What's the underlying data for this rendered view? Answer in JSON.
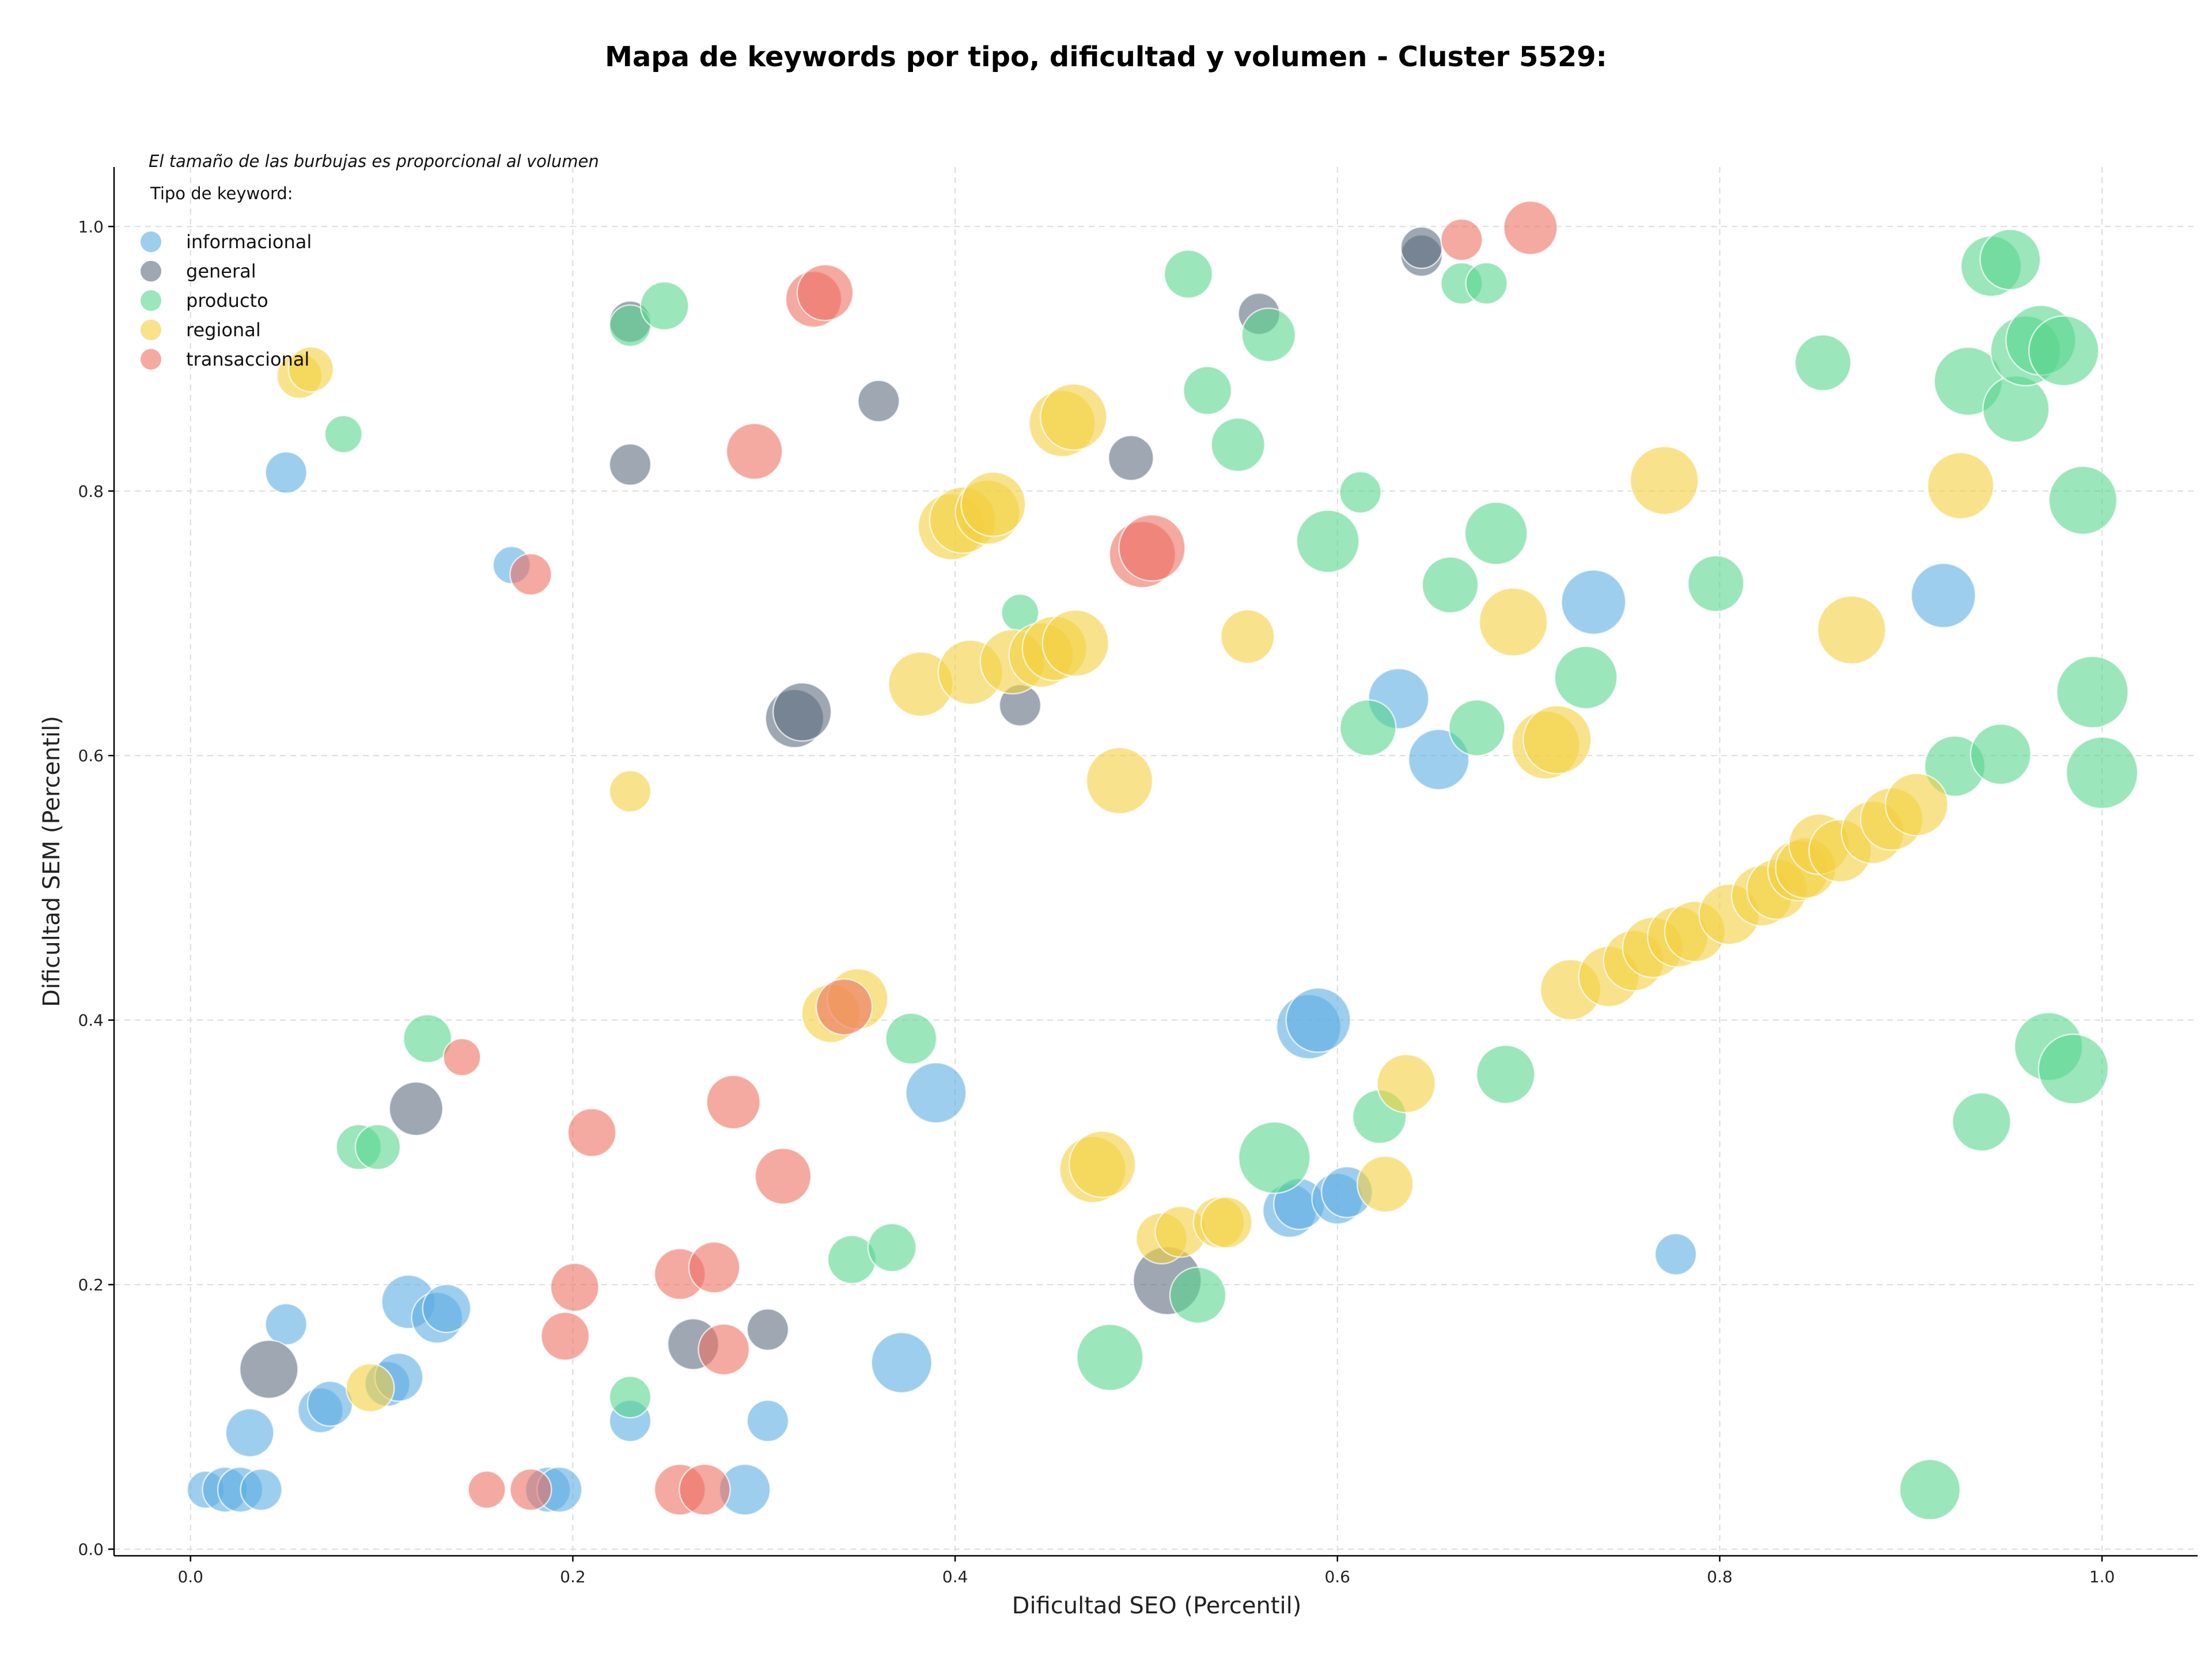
{
  "chart_data": {
    "type": "scatter",
    "title": "Mapa de keywords por tipo, dificultad y volumen - Cluster 5529:",
    "xlabel": "Dificultad SEO (Percentil)",
    "ylabel": "Dificultad SEM (Percentil)",
    "xlim": [
      -0.04,
      1.05
    ],
    "ylim": [
      -0.005,
      1.045
    ],
    "xticks": [
      "0.0",
      "0.2",
      "0.4",
      "0.6",
      "0.8",
      "1.0"
    ],
    "yticks": [
      "0.0",
      "0.2",
      "0.4",
      "0.6",
      "0.8",
      "1.0"
    ],
    "grid": true,
    "note": "El tamaño de las burbujas es proporcional al volumen",
    "legend": {
      "title": "Tipo de keyword:",
      "placement": "top-left"
    },
    "series": [
      {
        "name": "informacional",
        "color": "#5DADE2",
        "points": [
          {
            "x": 0.008,
            "y": 0.045,
            "s": 2
          },
          {
            "x": 0.018,
            "y": 0.045,
            "s": 4
          },
          {
            "x": 0.026,
            "y": 0.045,
            "s": 4
          },
          {
            "x": 0.037,
            "y": 0.045,
            "s": 3
          },
          {
            "x": 0.031,
            "y": 0.088,
            "s": 5
          },
          {
            "x": 0.05,
            "y": 0.17,
            "s": 3
          },
          {
            "x": 0.05,
            "y": 0.814,
            "s": 3
          },
          {
            "x": 0.068,
            "y": 0.105,
            "s": 4
          },
          {
            "x": 0.073,
            "y": 0.11,
            "s": 4
          },
          {
            "x": 0.103,
            "y": 0.125,
            "s": 4
          },
          {
            "x": 0.109,
            "y": 0.13,
            "s": 5
          },
          {
            "x": 0.114,
            "y": 0.187,
            "s": 7
          },
          {
            "x": 0.129,
            "y": 0.175,
            "s": 6
          },
          {
            "x": 0.134,
            "y": 0.182,
            "s": 5
          },
          {
            "x": 0.168,
            "y": 0.744,
            "s": 2
          },
          {
            "x": 0.187,
            "y": 0.045,
            "s": 4
          },
          {
            "x": 0.193,
            "y": 0.045,
            "s": 4
          },
          {
            "x": 0.23,
            "y": 0.097,
            "s": 3
          },
          {
            "x": 0.29,
            "y": 0.045,
            "s": 6
          },
          {
            "x": 0.302,
            "y": 0.097,
            "s": 3
          },
          {
            "x": 0.372,
            "y": 0.141,
            "s": 10
          },
          {
            "x": 0.39,
            "y": 0.345,
            "s": 10
          },
          {
            "x": 0.575,
            "y": 0.256,
            "s": 7
          },
          {
            "x": 0.58,
            "y": 0.261,
            "s": 6
          },
          {
            "x": 0.585,
            "y": 0.395,
            "s": 12
          },
          {
            "x": 0.59,
            "y": 0.4,
            "s": 12
          },
          {
            "x": 0.6,
            "y": 0.265,
            "s": 6
          },
          {
            "x": 0.605,
            "y": 0.27,
            "s": 6
          },
          {
            "x": 0.632,
            "y": 0.643,
            "s": 10
          },
          {
            "x": 0.653,
            "y": 0.597,
            "s": 10
          },
          {
            "x": 0.734,
            "y": 0.716,
            "s": 12
          },
          {
            "x": 0.777,
            "y": 0.223,
            "s": 3
          },
          {
            "x": 0.917,
            "y": 0.721,
            "s": 12
          }
        ]
      },
      {
        "name": "general",
        "color": "#5D6D7E",
        "points": [
          {
            "x": 0.041,
            "y": 0.136,
            "s": 9
          },
          {
            "x": 0.118,
            "y": 0.333,
            "s": 7
          },
          {
            "x": 0.23,
            "y": 0.82,
            "s": 3
          },
          {
            "x": 0.23,
            "y": 0.928,
            "s": 3
          },
          {
            "x": 0.263,
            "y": 0.155,
            "s": 6
          },
          {
            "x": 0.302,
            "y": 0.166,
            "s": 3
          },
          {
            "x": 0.316,
            "y": 0.628,
            "s": 9
          },
          {
            "x": 0.32,
            "y": 0.633,
            "s": 9
          },
          {
            "x": 0.36,
            "y": 0.868,
            "s": 3
          },
          {
            "x": 0.434,
            "y": 0.638,
            "s": 3
          },
          {
            "x": 0.492,
            "y": 0.825,
            "s": 4
          },
          {
            "x": 0.511,
            "y": 0.203,
            "s": 14
          },
          {
            "x": 0.559,
            "y": 0.934,
            "s": 3
          },
          {
            "x": 0.644,
            "y": 0.978,
            "s": 3
          },
          {
            "x": 0.644,
            "y": 0.984,
            "s": 3
          }
        ]
      },
      {
        "name": "producto",
        "color": "#58D68D",
        "points": [
          {
            "x": 0.08,
            "y": 0.843,
            "s": 2
          },
          {
            "x": 0.088,
            "y": 0.304,
            "s": 4
          },
          {
            "x": 0.098,
            "y": 0.304,
            "s": 4
          },
          {
            "x": 0.124,
            "y": 0.386,
            "s": 5
          },
          {
            "x": 0.23,
            "y": 0.115,
            "s": 3
          },
          {
            "x": 0.23,
            "y": 0.925,
            "s": 3
          },
          {
            "x": 0.248,
            "y": 0.94,
            "s": 5
          },
          {
            "x": 0.346,
            "y": 0.219,
            "s": 5
          },
          {
            "x": 0.367,
            "y": 0.228,
            "s": 5
          },
          {
            "x": 0.377,
            "y": 0.386,
            "s": 6
          },
          {
            "x": 0.434,
            "y": 0.708,
            "s": 2
          },
          {
            "x": 0.481,
            "y": 0.145,
            "s": 13
          },
          {
            "x": 0.522,
            "y": 0.964,
            "s": 5
          },
          {
            "x": 0.527,
            "y": 0.192,
            "s": 8
          },
          {
            "x": 0.532,
            "y": 0.876,
            "s": 5
          },
          {
            "x": 0.548,
            "y": 0.835,
            "s": 7
          },
          {
            "x": 0.567,
            "y": 0.296,
            "s": 16
          },
          {
            "x": 0.564,
            "y": 0.918,
            "s": 7
          },
          {
            "x": 0.595,
            "y": 0.762,
            "s": 11
          },
          {
            "x": 0.612,
            "y": 0.799,
            "s": 3
          },
          {
            "x": 0.616,
            "y": 0.621,
            "s": 8
          },
          {
            "x": 0.622,
            "y": 0.327,
            "s": 7
          },
          {
            "x": 0.659,
            "y": 0.729,
            "s": 8
          },
          {
            "x": 0.665,
            "y": 0.957,
            "s": 3
          },
          {
            "x": 0.678,
            "y": 0.957,
            "s": 3
          },
          {
            "x": 0.673,
            "y": 0.621,
            "s": 8
          },
          {
            "x": 0.683,
            "y": 0.768,
            "s": 11
          },
          {
            "x": 0.688,
            "y": 0.359,
            "s": 9
          },
          {
            "x": 0.73,
            "y": 0.659,
            "s": 11
          },
          {
            "x": 0.798,
            "y": 0.73,
            "s": 8
          },
          {
            "x": 0.854,
            "y": 0.897,
            "s": 8
          },
          {
            "x": 0.91,
            "y": 0.045,
            "s": 10
          },
          {
            "x": 0.923,
            "y": 0.592,
            "s": 10
          },
          {
            "x": 0.93,
            "y": 0.883,
            "s": 14
          },
          {
            "x": 0.937,
            "y": 0.323,
            "s": 9
          },
          {
            "x": 0.942,
            "y": 0.97,
            "s": 10
          },
          {
            "x": 0.947,
            "y": 0.601,
            "s": 10
          },
          {
            "x": 0.952,
            "y": 0.975,
            "s": 10
          },
          {
            "x": 0.955,
            "y": 0.862,
            "s": 13
          },
          {
            "x": 0.96,
            "y": 0.906,
            "s": 15
          },
          {
            "x": 0.968,
            "y": 0.914,
            "s": 15
          },
          {
            "x": 0.972,
            "y": 0.38,
            "s": 14
          },
          {
            "x": 0.98,
            "y": 0.906,
            "s": 15
          },
          {
            "x": 0.985,
            "y": 0.363,
            "s": 15
          },
          {
            "x": 0.99,
            "y": 0.793,
            "s": 14
          },
          {
            "x": 0.995,
            "y": 0.648,
            "s": 16
          },
          {
            "x": 1.0,
            "y": 0.587,
            "s": 16
          }
        ]
      },
      {
        "name": "regional",
        "color": "#F4D03F",
        "points": [
          {
            "x": 0.057,
            "y": 0.887,
            "s": 4
          },
          {
            "x": 0.063,
            "y": 0.892,
            "s": 4
          },
          {
            "x": 0.094,
            "y": 0.122,
            "s": 5
          },
          {
            "x": 0.23,
            "y": 0.573,
            "s": 3
          },
          {
            "x": 0.335,
            "y": 0.405,
            "s": 9
          },
          {
            "x": 0.349,
            "y": 0.416,
            "s": 10
          },
          {
            "x": 0.382,
            "y": 0.654,
            "s": 12
          },
          {
            "x": 0.398,
            "y": 0.773,
            "s": 13
          },
          {
            "x": 0.404,
            "y": 0.778,
            "s": 13
          },
          {
            "x": 0.408,
            "y": 0.663,
            "s": 12
          },
          {
            "x": 0.417,
            "y": 0.784,
            "s": 12
          },
          {
            "x": 0.42,
            "y": 0.79,
            "s": 12
          },
          {
            "x": 0.43,
            "y": 0.671,
            "s": 12
          },
          {
            "x": 0.445,
            "y": 0.676,
            "s": 12
          },
          {
            "x": 0.452,
            "y": 0.681,
            "s": 12
          },
          {
            "x": 0.463,
            "y": 0.685,
            "s": 13
          },
          {
            "x": 0.456,
            "y": 0.851,
            "s": 13
          },
          {
            "x": 0.462,
            "y": 0.856,
            "s": 13
          },
          {
            "x": 0.472,
            "y": 0.287,
            "s": 13
          },
          {
            "x": 0.477,
            "y": 0.291,
            "s": 13
          },
          {
            "x": 0.486,
            "y": 0.581,
            "s": 13
          },
          {
            "x": 0.508,
            "y": 0.235,
            "s": 6
          },
          {
            "x": 0.518,
            "y": 0.24,
            "s": 6
          },
          {
            "x": 0.538,
            "y": 0.247,
            "s": 6
          },
          {
            "x": 0.542,
            "y": 0.247,
            "s": 6
          },
          {
            "x": 0.553,
            "y": 0.69,
            "s": 7
          },
          {
            "x": 0.625,
            "y": 0.276,
            "s": 8
          },
          {
            "x": 0.636,
            "y": 0.352,
            "s": 9
          },
          {
            "x": 0.692,
            "y": 0.701,
            "s": 14
          },
          {
            "x": 0.709,
            "y": 0.608,
            "s": 14
          },
          {
            "x": 0.715,
            "y": 0.612,
            "s": 14
          },
          {
            "x": 0.722,
            "y": 0.423,
            "s": 10
          },
          {
            "x": 0.742,
            "y": 0.433,
            "s": 10
          },
          {
            "x": 0.755,
            "y": 0.445,
            "s": 10
          },
          {
            "x": 0.765,
            "y": 0.455,
            "s": 10
          },
          {
            "x": 0.771,
            "y": 0.808,
            "s": 14
          },
          {
            "x": 0.778,
            "y": 0.463,
            "s": 10
          },
          {
            "x": 0.787,
            "y": 0.467,
            "s": 10
          },
          {
            "x": 0.805,
            "y": 0.48,
            "s": 10
          },
          {
            "x": 0.822,
            "y": 0.494,
            "s": 10
          },
          {
            "x": 0.83,
            "y": 0.499,
            "s": 10
          },
          {
            "x": 0.841,
            "y": 0.513,
            "s": 10
          },
          {
            "x": 0.845,
            "y": 0.515,
            "s": 10
          },
          {
            "x": 0.852,
            "y": 0.533,
            "s": 10
          },
          {
            "x": 0.863,
            "y": 0.528,
            "s": 11
          },
          {
            "x": 0.869,
            "y": 0.695,
            "s": 14
          },
          {
            "x": 0.88,
            "y": 0.542,
            "s": 11
          },
          {
            "x": 0.89,
            "y": 0.552,
            "s": 11
          },
          {
            "x": 0.903,
            "y": 0.563,
            "s": 11
          },
          {
            "x": 0.926,
            "y": 0.804,
            "s": 13
          }
        ]
      },
      {
        "name": "transaccional",
        "color": "#EC7063",
        "points": [
          {
            "x": 0.142,
            "y": 0.372,
            "s": 2
          },
          {
            "x": 0.155,
            "y": 0.045,
            "s": 2
          },
          {
            "x": 0.178,
            "y": 0.045,
            "s": 3
          },
          {
            "x": 0.178,
            "y": 0.737,
            "s": 3
          },
          {
            "x": 0.196,
            "y": 0.161,
            "s": 5
          },
          {
            "x": 0.201,
            "y": 0.198,
            "s": 5
          },
          {
            "x": 0.21,
            "y": 0.315,
            "s": 5
          },
          {
            "x": 0.256,
            "y": 0.045,
            "s": 6
          },
          {
            "x": 0.256,
            "y": 0.208,
            "s": 6
          },
          {
            "x": 0.269,
            "y": 0.045,
            "s": 6
          },
          {
            "x": 0.274,
            "y": 0.213,
            "s": 6
          },
          {
            "x": 0.279,
            "y": 0.151,
            "s": 6
          },
          {
            "x": 0.284,
            "y": 0.338,
            "s": 7
          },
          {
            "x": 0.295,
            "y": 0.83,
            "s": 8
          },
          {
            "x": 0.31,
            "y": 0.282,
            "s": 8
          },
          {
            "x": 0.326,
            "y": 0.945,
            "s": 8
          },
          {
            "x": 0.332,
            "y": 0.95,
            "s": 8
          },
          {
            "x": 0.342,
            "y": 0.41,
            "s": 8
          },
          {
            "x": 0.498,
            "y": 0.752,
            "s": 13
          },
          {
            "x": 0.503,
            "y": 0.757,
            "s": 13
          },
          {
            "x": 0.665,
            "y": 0.99,
            "s": 3
          },
          {
            "x": 0.701,
            "y": 0.999,
            "s": 7
          }
        ]
      }
    ]
  }
}
